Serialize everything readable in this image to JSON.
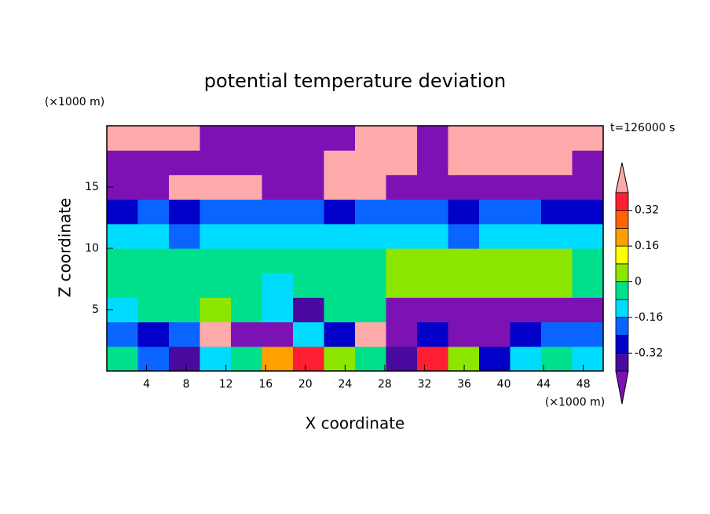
{
  "chart_data": {
    "type": "contour",
    "title": "potential temperature deviation",
    "xlabel": "X coordinate",
    "ylabel": "Z coordinate",
    "x_unit": "(×1000 m)",
    "y_unit": "(×1000 m)",
    "annotation": "t=126000 s",
    "x": [
      1.5625,
      4.6875,
      7.8125,
      10.9375,
      14.0625,
      17.1875,
      20.3125,
      23.4375,
      26.5625,
      29.6875,
      32.8125,
      35.9375,
      39.0625,
      42.1875,
      45.3125,
      48.4375
    ],
    "y": [
      1,
      3,
      5,
      7,
      9,
      11,
      13,
      15,
      17,
      19
    ],
    "z": [
      [
        -0.04,
        -0.2,
        -0.36,
        -0.12,
        -0.04,
        0.2,
        0.36,
        0.04,
        -0.04,
        -0.36,
        0.36,
        0.04,
        -0.28,
        -0.12,
        -0.04,
        -0.12
      ],
      [
        -0.2,
        -0.28,
        -0.2,
        0.5,
        -0.5,
        -0.5,
        -0.12,
        -0.28,
        0.5,
        -0.5,
        -0.28,
        -0.5,
        -0.5,
        -0.28,
        -0.2,
        -0.2
      ],
      [
        -0.12,
        -0.04,
        -0.04,
        0.04,
        -0.04,
        -0.12,
        -0.36,
        -0.04,
        -0.04,
        -0.5,
        -0.5,
        -0.5,
        -0.5,
        -0.5,
        -0.5,
        -0.5
      ],
      [
        -0.04,
        -0.04,
        -0.04,
        -0.04,
        -0.04,
        -0.12,
        -0.04,
        -0.04,
        -0.04,
        0.04,
        0.04,
        0.04,
        0.04,
        0.04,
        0.04,
        -0.04
      ],
      [
        -0.04,
        -0.04,
        -0.04,
        -0.04,
        -0.04,
        -0.04,
        -0.04,
        -0.04,
        -0.04,
        0.04,
        0.04,
        0.04,
        0.04,
        0.04,
        0.04,
        -0.04
      ],
      [
        -0.12,
        -0.12,
        -0.2,
        -0.12,
        -0.12,
        -0.12,
        -0.12,
        -0.12,
        -0.12,
        -0.12,
        -0.12,
        -0.2,
        -0.12,
        -0.12,
        -0.12,
        -0.12
      ],
      [
        -0.28,
        -0.2,
        -0.28,
        -0.2,
        -0.2,
        -0.2,
        -0.2,
        -0.28,
        -0.2,
        -0.2,
        -0.2,
        -0.28,
        -0.2,
        -0.2,
        -0.28,
        -0.28
      ],
      [
        -0.5,
        -0.5,
        0.5,
        0.5,
        0.5,
        -0.5,
        -0.5,
        0.5,
        0.5,
        -0.5,
        -0.5,
        -0.5,
        -0.5,
        -0.5,
        -0.5,
        -0.5
      ],
      [
        -0.5,
        -0.5,
        -0.5,
        -0.5,
        -0.5,
        -0.5,
        -0.5,
        0.5,
        0.5,
        0.5,
        -0.5,
        0.5,
        0.5,
        0.5,
        0.5,
        -0.5
      ],
      [
        0.5,
        0.5,
        0.5,
        -0.5,
        -0.5,
        -0.5,
        -0.5,
        -0.5,
        0.5,
        0.5,
        -0.5,
        0.5,
        0.5,
        0.5,
        0.5,
        0.5
      ]
    ],
    "levels": [
      -0.4,
      -0.32,
      -0.24,
      -0.16,
      -0.08,
      0,
      0.08,
      0.16,
      0.24,
      0.32,
      0.4
    ],
    "colors": [
      "#7d12b4",
      "#4a0aa0",
      "#0000c8",
      "#0a64ff",
      "#00dcff",
      "#00e08c",
      "#8ce600",
      "#ffff00",
      "#ffa000",
      "#ff6400",
      "#ff1e32",
      "#ffaaaa"
    ],
    "colorbar_ticks": [
      -0.32,
      -0.16,
      0,
      0.16,
      0.32
    ],
    "xlim": [
      0,
      50
    ],
    "xticks": [
      4,
      8,
      12,
      16,
      20,
      24,
      28,
      32,
      36,
      40,
      44,
      48
    ],
    "ylim": [
      0,
      20
    ],
    "yticks": [
      5,
      10,
      15
    ]
  }
}
